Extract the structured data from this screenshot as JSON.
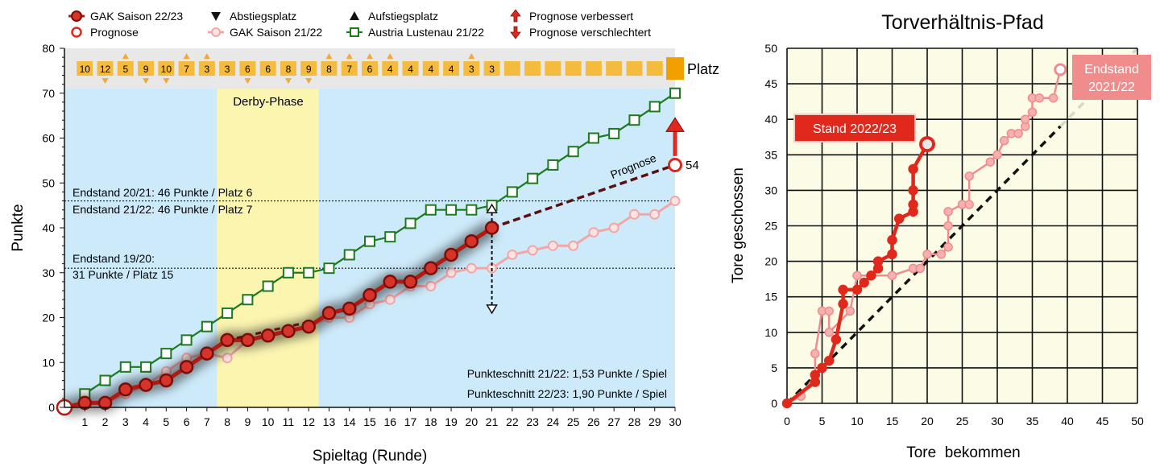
{
  "chart_data": [
    {
      "type": "line",
      "xlabel": "Spieltag (Runde)",
      "ylabel": "Punkte",
      "xlim": [
        0,
        30
      ],
      "ylim": [
        0,
        80
      ],
      "xticks": [
        1,
        2,
        3,
        4,
        5,
        6,
        7,
        8,
        9,
        10,
        11,
        12,
        13,
        14,
        15,
        16,
        17,
        18,
        19,
        20,
        21,
        22,
        23,
        24,
        25,
        26,
        27,
        28,
        29,
        30
      ],
      "yticks": [
        0,
        10,
        20,
        30,
        40,
        50,
        60,
        70,
        80
      ],
      "legend": {
        "placement": "top",
        "entries": [
          "GAK Saison 22/23",
          "Prognose",
          "Abstiegsplatz",
          "GAK Saison 21/22",
          "Aufstiegsplatz",
          "Austria Lustenau 21/22",
          "Prognose verbessert",
          "Prognose verschlechtert"
        ]
      },
      "series": [
        {
          "name": "GAK Saison 22/23",
          "color": "#b11a10",
          "x": [
            0,
            1,
            2,
            3,
            4,
            5,
            6,
            7,
            8,
            9,
            10,
            11,
            12,
            13,
            14,
            15,
            16,
            17,
            18,
            19,
            20,
            21
          ],
          "values": [
            0,
            1,
            1,
            4,
            5,
            6,
            9,
            12,
            15,
            15,
            16,
            17,
            18,
            21,
            22,
            25,
            28,
            28,
            31,
            34,
            37,
            40
          ]
        },
        {
          "name": "GAK Saison 21/22",
          "color": "#f4a6a6",
          "x": [
            0,
            1,
            2,
            3,
            4,
            5,
            6,
            7,
            8,
            9,
            10,
            11,
            12,
            13,
            14,
            15,
            16,
            17,
            18,
            19,
            20,
            21,
            22,
            23,
            24,
            25,
            26,
            27,
            28,
            29,
            30
          ],
          "values": [
            0,
            1,
            1,
            3,
            5,
            8,
            11,
            12,
            11,
            15,
            16,
            17,
            18,
            20,
            20,
            23,
            24,
            27,
            27,
            30,
            31,
            31,
            34,
            35,
            36,
            36,
            39,
            40,
            43,
            43,
            46
          ]
        },
        {
          "name": "Austria Lustenau 21/22",
          "color": "#1e7a1e",
          "x": [
            1,
            2,
            3,
            4,
            5,
            6,
            7,
            8,
            9,
            10,
            11,
            12,
            13,
            14,
            15,
            16,
            17,
            18,
            19,
            20,
            21,
            22,
            23,
            24,
            25,
            26,
            27,
            28,
            29,
            30
          ],
          "values": [
            3,
            6,
            9,
            9,
            12,
            15,
            18,
            21,
            24,
            27,
            30,
            30,
            31,
            34,
            37,
            38,
            41,
            44,
            44,
            44,
            45,
            48,
            51,
            54,
            57,
            60,
            61,
            64,
            67,
            70
          ]
        }
      ],
      "forecast": {
        "label": "Prognose",
        "from": [
          21,
          40
        ],
        "to": [
          30,
          54
        ],
        "end_label": "54"
      },
      "threshold_lines": [
        {
          "y": 46,
          "label_above": "Endstand 20/21: 46 Punkte / Platz 6",
          "label_below": "Endstand 21/22: 46 Punkte / Platz 7"
        },
        {
          "y": 31,
          "label_above": "Endstand 19/20:",
          "label_below": "31 Punkte / Platz 15"
        }
      ],
      "regions": [
        {
          "label": "Derby-Phase",
          "x_from": 7.5,
          "x_to": 12.5,
          "color": "#fbf5b0"
        }
      ],
      "placement_row": {
        "label": "Platz",
        "ranks": [
          "10",
          "12",
          "5",
          "9",
          "10",
          "7",
          "3",
          "3",
          "6",
          "6",
          "8",
          "9",
          "8",
          "7",
          "6",
          "4",
          "4",
          "4",
          "4",
          "3",
          "3",
          "",
          "",
          "",
          "",
          "",
          "",
          "",
          "",
          ""
        ],
        "markers": [
          "",
          "down",
          "up",
          "down",
          "down",
          "up",
          "up",
          "",
          "down",
          "",
          "down",
          "down",
          "up",
          "up",
          "up",
          "up",
          "",
          "",
          "",
          "up",
          "",
          "",
          "",
          "",
          "",
          "",
          "",
          "",
          "",
          ""
        ]
      },
      "forecast_arrows": [
        {
          "x": 21,
          "direction": "up",
          "y_from": 40,
          "y_to": 45
        },
        {
          "x": 21,
          "direction": "down",
          "y_from": 40,
          "y_to": 21
        },
        {
          "x": 30,
          "direction": "up",
          "y_from": 56,
          "y_to": 62
        }
      ],
      "annotations": [
        "Punkteschnitt 21/22: 1,53 Punkte / Spiel",
        "Punkteschnitt 22/23: 1,90 Punkte / Spiel"
      ]
    },
    {
      "type": "line",
      "title": "Torverhältnis-Pfad",
      "xlabel": "Tore  bekommen",
      "ylabel": "Tore geschossen",
      "xlim": [
        0,
        50
      ],
      "ylim": [
        0,
        50
      ],
      "xticks": [
        0,
        5,
        10,
        15,
        20,
        25,
        30,
        35,
        40,
        45,
        50
      ],
      "yticks": [
        0,
        5,
        10,
        15,
        20,
        25,
        30,
        35,
        40,
        45,
        50
      ],
      "grid": true,
      "series": [
        {
          "name": "",
          "color": "#e0281c",
          "x": [
            0,
            4,
            4,
            5,
            6,
            7,
            8,
            8,
            10,
            11,
            12,
            13,
            13,
            15,
            15,
            16,
            18,
            18,
            18,
            18,
            20
          ],
          "y": [
            0,
            3,
            4,
            5,
            6,
            9,
            14,
            16,
            16,
            17,
            18,
            19,
            20,
            21,
            23,
            26,
            27,
            28,
            30,
            33,
            36.5
          ],
          "end_label": "Stand 2022/23"
        },
        {
          "name": "",
          "color": "#f08c8c",
          "x": [
            0,
            2,
            4,
            4,
            5,
            6,
            6,
            9,
            10,
            12,
            15,
            18,
            19,
            20,
            22,
            23,
            23,
            23,
            25,
            26,
            26,
            29,
            30,
            31,
            32,
            33,
            34,
            34,
            35,
            35,
            36,
            38,
            39
          ],
          "y": [
            0,
            1,
            4,
            7,
            13,
            13,
            10,
            13,
            18,
            18,
            18,
            19,
            19,
            21,
            21,
            22,
            25,
            27,
            28,
            28,
            32,
            34,
            35,
            37,
            38,
            38,
            39,
            40,
            41,
            43,
            43,
            43,
            47
          ],
          "end_label": "Endstand\n2021/22"
        },
        {
          "name": "",
          "color": "#111111",
          "style": "dashed",
          "x": [
            0,
            50
          ],
          "y": [
            0,
            50
          ]
        }
      ]
    }
  ],
  "colors": {
    "plot_bg": "#cdeafa",
    "header_band": "#e8e8e8",
    "rank_box": "#f5bb3c",
    "rank_marker": "#f2a93b",
    "right_plot_bg": "#fbfbe6",
    "label_red": "#e0281c",
    "label_pink": "#f08c8c"
  }
}
